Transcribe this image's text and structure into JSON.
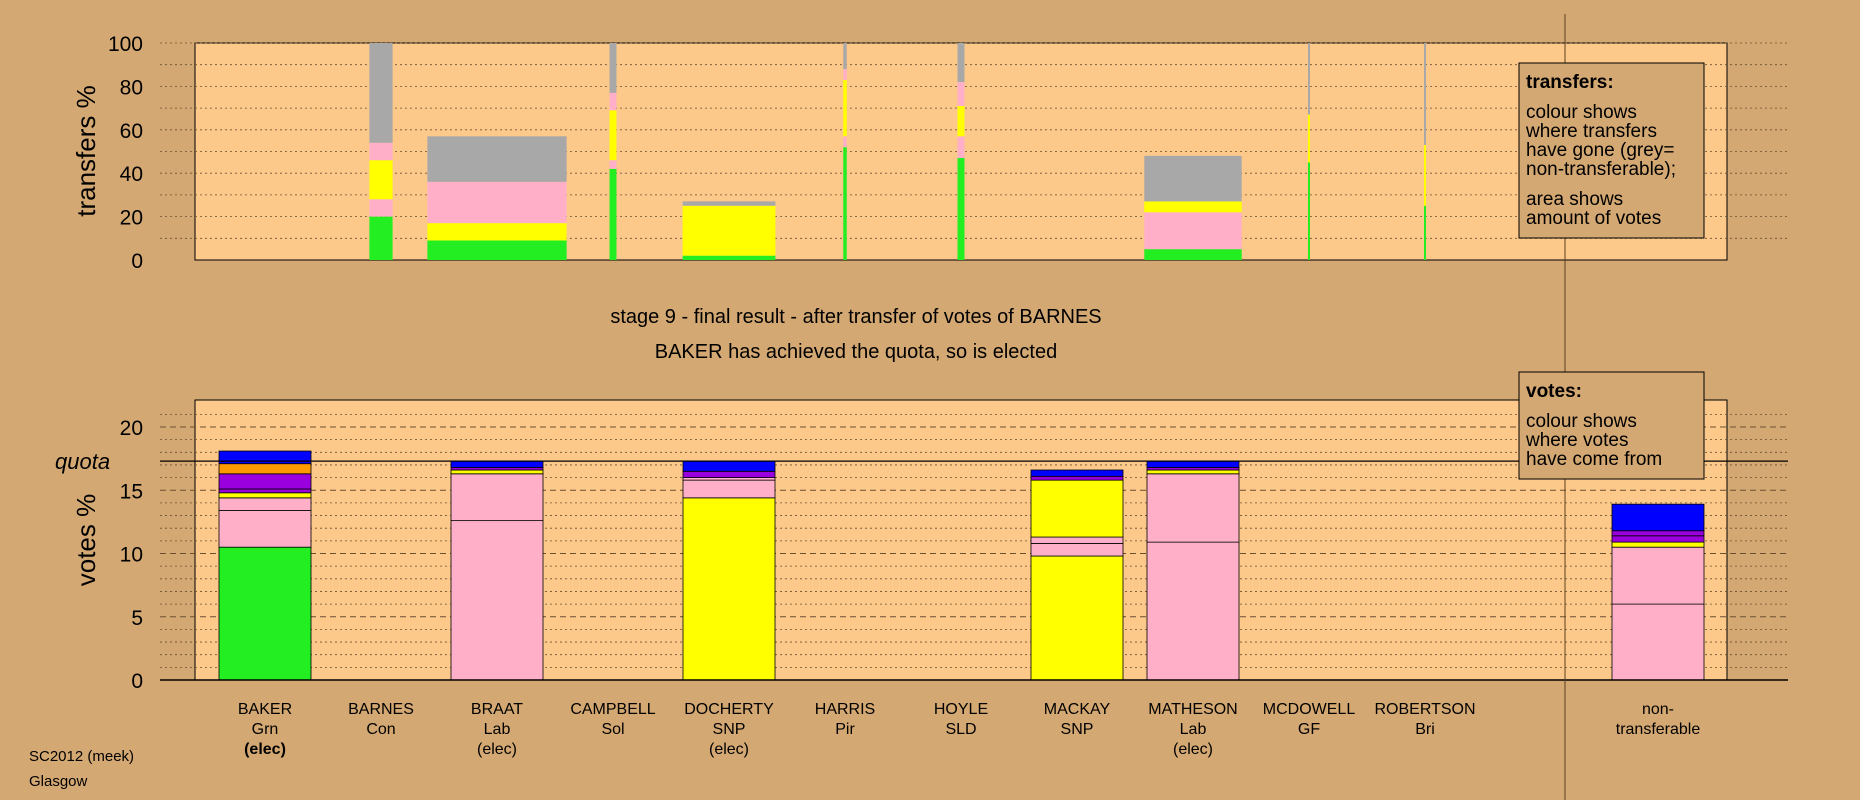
{
  "colors": {
    "background": "#d4a872",
    "panel": "#fdc98b",
    "green": "#22ee22",
    "yellow": "#ffff00",
    "pink": "#ffb0c8",
    "grey": "#a8a8a8",
    "blue": "#0000ff",
    "purple": "#9900dd",
    "orange": "#ff9900"
  },
  "titles": {
    "stage": "stage 9 - final result - after transfer of votes of BARNES",
    "status": "BAKER has achieved the quota, so is elected"
  },
  "footer": {
    "line1": "SC2012 (meek)",
    "line2": "Glasgow"
  },
  "legends": {
    "transfers": {
      "title": "transfers:",
      "lines": [
        "colour shows",
        "where transfers",
        "have gone (grey=",
        "non-transferable);",
        "area shows",
        "amount of votes"
      ]
    },
    "votes": {
      "title": "votes:",
      "lines": [
        "colour shows",
        "where votes",
        "have come from"
      ]
    }
  },
  "chart_data": [
    {
      "type": "bar",
      "title": "transfers",
      "ylabel": "transfers %",
      "ylim": [
        0,
        100
      ],
      "yticks": [
        0,
        20,
        40,
        60,
        80,
        100
      ],
      "categories": [
        "BAKER",
        "",
        "BARNES",
        "",
        "BRAAT",
        "",
        "CAMPBELL",
        "",
        "DOCHERTY",
        "",
        "HARRIS",
        "",
        "HOYLE",
        "",
        "MACKAY",
        "",
        "MATHESON",
        "",
        "MCDOWELL",
        "",
        "ROBERTSON",
        ""
      ],
      "bars": [
        {
          "column": "BARNES",
          "width": 0.2,
          "segments": [
            {
              "color": "green",
              "value": 20
            },
            {
              "color": "pink",
              "value": 8
            },
            {
              "color": "yellow",
              "value": 18
            },
            {
              "color": "pink",
              "value": 8
            },
            {
              "color": "grey",
              "value": 46
            }
          ]
        },
        {
          "column": "BRAAT",
          "width": 1.2,
          "segments": [
            {
              "color": "green",
              "value": 9
            },
            {
              "color": "yellow",
              "value": 8
            },
            {
              "color": "pink",
              "value": 19
            },
            {
              "color": "grey",
              "value": 21
            }
          ]
        },
        {
          "column": "CAMPBELL",
          "width": 0.06,
          "segments": [
            {
              "color": "green",
              "value": 42
            },
            {
              "color": "pink",
              "value": 4
            },
            {
              "color": "yellow",
              "value": 23
            },
            {
              "color": "pink",
              "value": 8
            },
            {
              "color": "grey",
              "value": 23
            }
          ]
        },
        {
          "column": "DOCHERTY",
          "width": 0.8,
          "segments": [
            {
              "color": "green",
              "value": 2
            },
            {
              "color": "yellow",
              "value": 23
            },
            {
              "color": "grey",
              "value": 2
            }
          ]
        },
        {
          "column": "HARRIS",
          "width": 0.03,
          "segments": [
            {
              "color": "green",
              "value": 52
            },
            {
              "color": "pink",
              "value": 5
            },
            {
              "color": "yellow",
              "value": 26
            },
            {
              "color": "pink",
              "value": 5
            },
            {
              "color": "grey",
              "value": 12
            }
          ]
        },
        {
          "column": "HOYLE",
          "width": 0.06,
          "segments": [
            {
              "color": "green",
              "value": 47
            },
            {
              "color": "pink",
              "value": 10
            },
            {
              "color": "yellow",
              "value": 14
            },
            {
              "color": "pink",
              "value": 11
            },
            {
              "color": "grey",
              "value": 18
            }
          ]
        },
        {
          "column": "MATHESON",
          "width": 0.84,
          "segments": [
            {
              "color": "green",
              "value": 5
            },
            {
              "color": "pink",
              "value": 17
            },
            {
              "color": "yellow",
              "value": 5
            },
            {
              "color": "grey",
              "value": 21
            }
          ]
        },
        {
          "column": "MCDOWELL",
          "width": 0.015,
          "segments": [
            {
              "color": "green",
              "value": 45
            },
            {
              "color": "yellow",
              "value": 22
            },
            {
              "color": "grey",
              "value": 33
            }
          ]
        },
        {
          "column": "ROBERTSON",
          "width": 0.015,
          "segments": [
            {
              "color": "green",
              "value": 25
            },
            {
              "color": "yellow",
              "value": 28
            },
            {
              "color": "grey",
              "value": 47
            }
          ]
        }
      ],
      "grid": true
    },
    {
      "type": "bar",
      "title": "votes",
      "ylabel": "votes %",
      "ylim": [
        0,
        22
      ],
      "yticks": [
        0,
        5,
        10,
        15,
        20
      ],
      "quota": 17.3,
      "quota_label": "quota",
      "grid": true,
      "candidates": [
        {
          "name": "BAKER",
          "party": "Grn",
          "status": "(elec)",
          "status_bold": true,
          "segments": [
            {
              "color": "green",
              "value": 10.5
            },
            {
              "color": "pink",
              "value": 2.9
            },
            {
              "color": "pink",
              "value": 1.0
            },
            {
              "color": "yellow",
              "value": 0.4
            },
            {
              "color": "purple",
              "value": 0.3
            },
            {
              "color": "purple",
              "value": 1.2
            },
            {
              "color": "orange",
              "value": 0.8
            },
            {
              "color": "blue",
              "value": 1.0
            }
          ]
        },
        {
          "name": "BARNES",
          "party": "Con",
          "status": "",
          "segments": []
        },
        {
          "name": "BRAAT",
          "party": "Lab",
          "status": "(elec)",
          "segments": [
            {
              "color": "pink",
              "value": 12.6
            },
            {
              "color": "pink",
              "value": 3.7
            },
            {
              "color": "yellow",
              "value": 0.3
            },
            {
              "color": "purple",
              "value": 0.2
            },
            {
              "color": "blue",
              "value": 0.5
            }
          ]
        },
        {
          "name": "CAMPBELL",
          "party": "Sol",
          "status": "",
          "segments": []
        },
        {
          "name": "DOCHERTY",
          "party": "SNP",
          "status": "(elec)",
          "segments": [
            {
              "color": "yellow",
              "value": 14.4
            },
            {
              "color": "pink",
              "value": 1.4
            },
            {
              "color": "pink",
              "value": 0.2
            },
            {
              "color": "purple",
              "value": 0.5
            },
            {
              "color": "blue",
              "value": 0.8
            }
          ]
        },
        {
          "name": "HARRIS",
          "party": "Pir",
          "status": "",
          "segments": []
        },
        {
          "name": "HOYLE",
          "party": "SLD",
          "status": "",
          "segments": []
        },
        {
          "name": "MACKAY",
          "party": "SNP",
          "status": "",
          "segments": [
            {
              "color": "yellow",
              "value": 9.8
            },
            {
              "color": "pink",
              "value": 1.0
            },
            {
              "color": "pink",
              "value": 0.5
            },
            {
              "color": "yellow",
              "value": 4.5
            },
            {
              "color": "purple",
              "value": 0.3
            },
            {
              "color": "blue",
              "value": 0.5
            }
          ]
        },
        {
          "name": "MATHESON",
          "party": "Lab",
          "status": "(elec)",
          "segments": [
            {
              "color": "pink",
              "value": 10.9
            },
            {
              "color": "pink",
              "value": 5.4
            },
            {
              "color": "yellow",
              "value": 0.3
            },
            {
              "color": "purple",
              "value": 0.2
            },
            {
              "color": "blue",
              "value": 0.5
            }
          ]
        },
        {
          "name": "MCDOWELL",
          "party": "GF",
          "status": "",
          "segments": []
        },
        {
          "name": "ROBERTSON",
          "party": "Bri",
          "status": "",
          "segments": []
        }
      ],
      "nontransferable": {
        "label_line1": "non-",
        "label_line2": "transferable",
        "segments": [
          {
            "color": "pink",
            "value": 6.0
          },
          {
            "color": "pink",
            "value": 4.5
          },
          {
            "color": "yellow",
            "value": 0.4
          },
          {
            "color": "purple",
            "value": 0.5
          },
          {
            "color": "purple",
            "value": 0.4
          },
          {
            "color": "blue",
            "value": 2.1
          }
        ]
      }
    }
  ]
}
